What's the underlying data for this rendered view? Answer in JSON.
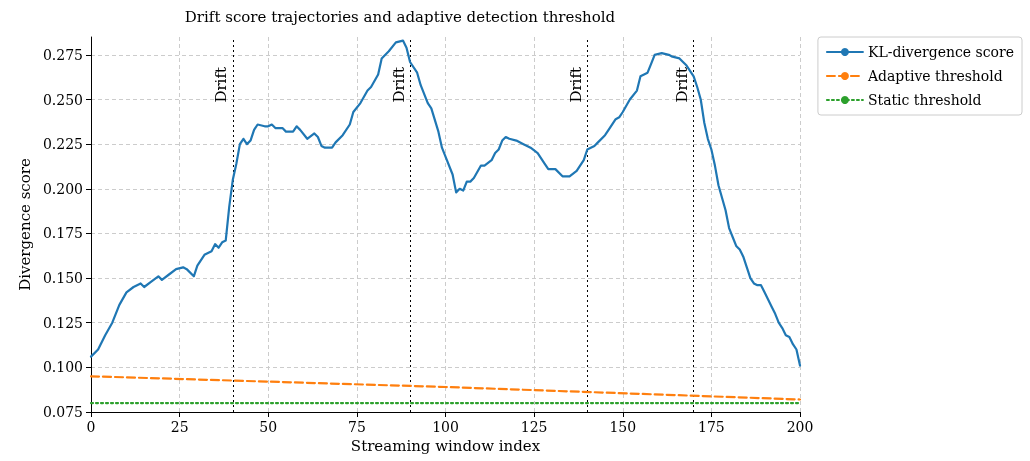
{
  "chart_data": {
    "type": "line",
    "title": "Drift score trajectories and adaptive detection threshold",
    "xlabel": "Streaming window index",
    "ylabel": "Divergence score",
    "xlim": [
      0,
      200
    ],
    "xticks": [
      0,
      25,
      50,
      75,
      100,
      125,
      150,
      175,
      200
    ],
    "ylim": [
      0.075,
      0.285
    ],
    "yticks": [
      0.075,
      {
        "value": 0.1,
        "label": "0.100"
      },
      0.125,
      {
        "value": 0.15,
        "label": "0.150"
      },
      0.175,
      {
        "value": 0.2,
        "label": "0.200"
      },
      0.225,
      {
        "value": 0.25,
        "label": "0.250"
      },
      0.275
    ],
    "grid": true,
    "legend": "top right",
    "marker": "none",
    "series": [
      {
        "name": "KL-divergence score",
        "color": "#1f77b4",
        "line_style": "solid",
        "x": [
          0,
          2,
          4,
          6,
          8,
          10,
          12,
          14,
          15,
          17,
          19,
          20,
          22,
          24,
          26,
          27,
          29,
          30,
          32,
          34,
          35,
          36,
          37,
          38,
          39,
          40,
          41,
          42,
          43,
          44,
          45,
          46,
          47,
          49,
          50,
          51,
          52,
          54,
          55,
          56,
          57,
          58,
          59,
          61,
          63,
          64,
          65,
          66,
          68,
          69,
          71,
          73,
          74,
          76,
          78,
          79,
          81,
          82,
          84,
          86,
          88,
          89,
          90,
          92,
          93,
          95,
          96,
          98,
          99,
          100,
          102,
          103,
          104,
          105,
          106,
          107,
          108,
          110,
          111,
          113,
          114,
          115,
          116,
          117,
          118,
          120,
          122,
          124,
          126,
          128,
          129,
          131,
          133,
          135,
          137,
          139,
          140,
          142,
          143,
          145,
          146,
          148,
          149,
          150,
          152,
          154,
          155,
          157,
          158,
          159,
          161,
          163,
          164,
          166,
          167,
          168,
          170,
          171,
          172,
          173,
          174,
          175,
          176,
          177,
          179,
          180,
          181,
          182,
          183,
          184,
          185,
          186,
          187,
          188,
          189,
          190,
          191,
          192,
          193,
          194,
          195,
          196,
          197,
          198,
          199,
          200
        ],
        "values": [
          0.106,
          0.11,
          0.118,
          0.125,
          0.135,
          0.142,
          0.145,
          0.147,
          0.145,
          0.148,
          0.151,
          0.149,
          0.152,
          0.155,
          0.156,
          0.155,
          0.151,
          0.157,
          0.163,
          0.165,
          0.169,
          0.167,
          0.17,
          0.171,
          0.19,
          0.205,
          0.214,
          0.225,
          0.228,
          0.225,
          0.227,
          0.233,
          0.236,
          0.235,
          0.235,
          0.236,
          0.234,
          0.234,
          0.232,
          0.232,
          0.232,
          0.235,
          0.233,
          0.228,
          0.231,
          0.229,
          0.224,
          0.223,
          0.223,
          0.226,
          0.23,
          0.236,
          0.243,
          0.248,
          0.255,
          0.257,
          0.264,
          0.273,
          0.277,
          0.282,
          0.283,
          0.279,
          0.271,
          0.265,
          0.258,
          0.248,
          0.245,
          0.232,
          0.223,
          0.218,
          0.208,
          0.198,
          0.2,
          0.199,
          0.204,
          0.204,
          0.206,
          0.213,
          0.213,
          0.216,
          0.22,
          0.222,
          0.227,
          0.229,
          0.228,
          0.227,
          0.225,
          0.223,
          0.22,
          0.214,
          0.211,
          0.211,
          0.207,
          0.207,
          0.21,
          0.216,
          0.222,
          0.224,
          0.226,
          0.23,
          0.233,
          0.239,
          0.24,
          0.243,
          0.25,
          0.255,
          0.263,
          0.265,
          0.27,
          0.275,
          0.276,
          0.275,
          0.274,
          0.273,
          0.271,
          0.269,
          0.263,
          0.257,
          0.25,
          0.237,
          0.228,
          0.222,
          0.213,
          0.202,
          0.188,
          0.178,
          0.173,
          0.168,
          0.166,
          0.162,
          0.156,
          0.15,
          0.147,
          0.146,
          0.146,
          0.142,
          0.138,
          0.134,
          0.13,
          0.125,
          0.122,
          0.118,
          0.117,
          0.113,
          0.11,
          0.101
        ]
      },
      {
        "name": "Adaptive threshold",
        "color": "#ff7f0e",
        "line_style": "dashed",
        "x": [
          0,
          100,
          200
        ],
        "values": [
          0.095,
          0.089,
          0.082
        ]
      },
      {
        "name": "Static threshold",
        "color": "#2ca02c",
        "line_style": "dotted",
        "x": [
          0,
          200
        ],
        "values": [
          0.08,
          0.08
        ]
      }
    ],
    "ref_lines": [
      {
        "axis": "x",
        "value": 40,
        "label": "Drift",
        "color": "#000000",
        "line_style": "dotted"
      },
      {
        "axis": "x",
        "value": 90,
        "label": "Drift",
        "color": "#000000",
        "line_style": "dotted"
      },
      {
        "axis": "x",
        "value": 140,
        "label": "Drift",
        "color": "#000000",
        "line_style": "dotted"
      },
      {
        "axis": "x",
        "value": 170,
        "label": "Drift",
        "color": "#000000",
        "line_style": "dotted"
      }
    ]
  }
}
